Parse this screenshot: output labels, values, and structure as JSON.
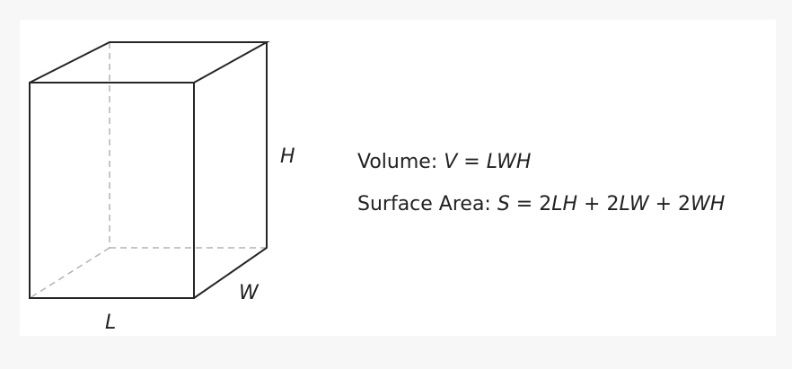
{
  "diagram": {
    "labels": {
      "height": "H",
      "width": "W",
      "length": "L"
    },
    "formulas": {
      "volume": {
        "prefix": "Volume: ",
        "lhs": "V",
        "eq": " = ",
        "rhs": "LWH"
      },
      "surface_area": {
        "prefix": "Surface Area: ",
        "lhs": "S",
        "eq": " = 2",
        "t1": "LH",
        "p1": " + 2",
        "t2": "LW",
        "p2": " + 2",
        "t3": "WH"
      }
    }
  }
}
